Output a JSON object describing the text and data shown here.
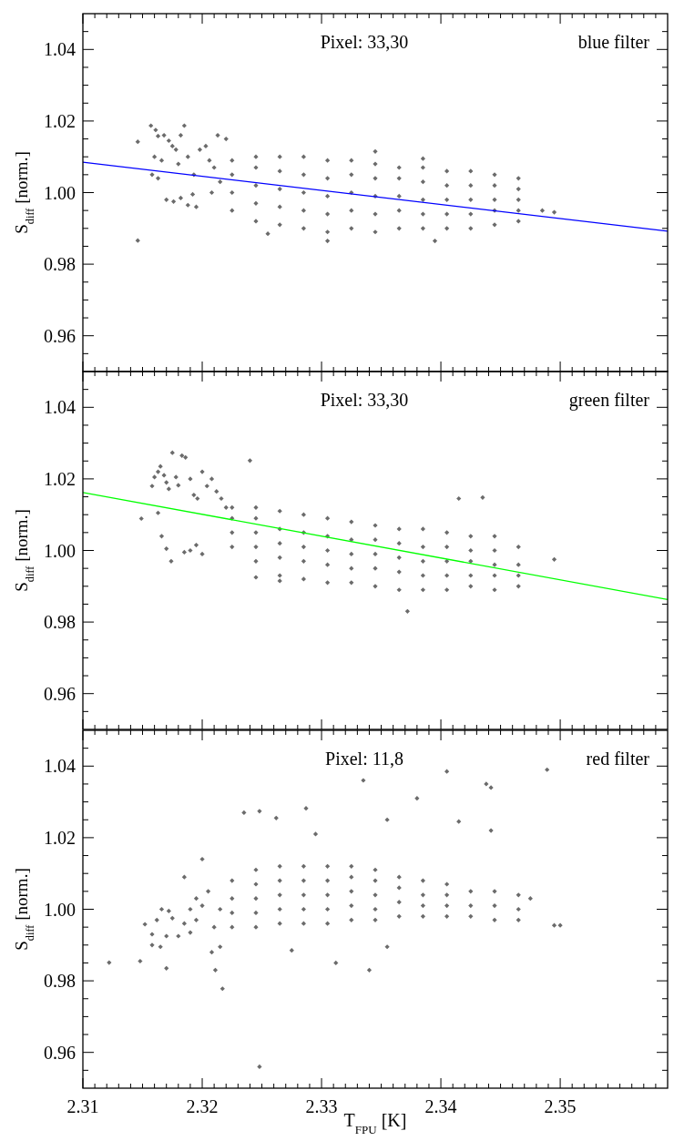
{
  "chart_data": [
    {
      "type": "scatter",
      "ylabel": "S$_{diff}$ [norm.]",
      "annotations": [
        "Pixel: 33,30",
        "blue filter"
      ],
      "xlim": [
        2.31,
        2.359
      ],
      "ylim": [
        0.95,
        1.05
      ],
      "tick_labels": "y",
      "xticks": [
        2.31,
        {
          "value": 2.311,
          "label": null
        },
        {
          "value": 2.312,
          "label": null
        },
        {
          "value": 2.313,
          "label": null
        },
        {
          "value": 2.314,
          "label": null
        },
        {
          "value": 2.315,
          "label": null
        },
        {
          "value": 2.316,
          "label": null
        },
        {
          "value": 2.317,
          "label": null
        },
        {
          "value": 2.318,
          "label": null
        },
        {
          "value": 2.319,
          "label": null
        },
        2.32,
        {
          "value": 2.321,
          "label": null
        },
        {
          "value": 2.322,
          "label": null
        },
        {
          "value": 2.323,
          "label": null
        },
        {
          "value": 2.324,
          "label": null
        },
        {
          "value": 2.325,
          "label": null
        },
        {
          "value": 2.326,
          "label": null
        },
        {
          "value": 2.327,
          "label": null
        },
        {
          "value": 2.328,
          "label": null
        },
        {
          "value": 2.329,
          "label": null
        },
        2.33,
        {
          "value": 2.331,
          "label": null
        },
        {
          "value": 2.332,
          "label": null
        },
        {
          "value": 2.333,
          "label": null
        },
        {
          "value": 2.334,
          "label": null
        },
        {
          "value": 2.335,
          "label": null
        },
        {
          "value": 2.336,
          "label": null
        },
        {
          "value": 2.337,
          "label": null
        },
        {
          "value": 2.338,
          "label": null
        },
        {
          "value": 2.339,
          "label": null
        },
        2.34,
        {
          "value": 2.341,
          "label": null
        },
        {
          "value": 2.342,
          "label": null
        },
        {
          "value": 2.343,
          "label": null
        },
        {
          "value": 2.344,
          "label": null
        },
        {
          "value": 2.345,
          "label": null
        },
        {
          "value": 2.346,
          "label": null
        },
        {
          "value": 2.347,
          "label": null
        },
        {
          "value": 2.348,
          "label": null
        },
        {
          "value": 2.349,
          "label": null
        },
        2.35,
        {
          "value": 2.351,
          "label": null
        },
        {
          "value": 2.352,
          "label": null
        },
        {
          "value": 2.353,
          "label": null
        },
        {
          "value": 2.354,
          "label": null
        },
        {
          "value": 2.355,
          "label": null
        },
        {
          "value": 2.356,
          "label": null
        },
        {
          "value": 2.357,
          "label": null
        },
        {
          "value": 2.358,
          "label": null
        }
      ],
      "yticks": [
        {
          "value": 0.955,
          "label": null
        },
        0.96,
        {
          "value": 0.965,
          "label": null
        },
        {
          "value": 0.97,
          "label": null
        },
        {
          "value": 0.975,
          "label": null
        },
        0.98,
        {
          "value": 0.985,
          "label": null
        },
        {
          "value": 0.99,
          "label": null
        },
        {
          "value": 0.995,
          "label": null
        },
        {
          "value": 1,
          "label": "1.00"
        },
        {
          "value": 1.005,
          "label": null
        },
        {
          "value": 1.01,
          "label": null
        },
        {
          "value": 1.015,
          "label": null
        },
        1.02,
        {
          "value": 1.025,
          "label": null
        },
        {
          "value": 1.03,
          "label": null
        },
        {
          "value": 1.035,
          "label": null
        },
        1.04,
        {
          "value": 1.045,
          "label": null
        }
      ],
      "series": [
        {
          "marker": "diamond",
          "color": "#6b6b6b",
          "x": [
            2.3146,
            2.3146,
            2.3157,
            2.3161,
            2.3163,
            2.3168,
            2.3172,
            2.316,
            2.3166,
            2.3175,
            2.3178,
            2.3182,
            2.3185,
            2.318,
            2.3188,
            2.317,
            2.3176,
            2.3182,
            2.3188,
            2.3192,
            2.3195,
            2.3193,
            2.3198,
            2.3203,
            2.3206,
            2.321,
            2.3213,
            2.322,
            2.3208,
            2.3215,
            2.3158,
            2.3163,
            2.3225,
            2.3225,
            2.3225,
            2.3225,
            2.3245,
            2.3245,
            2.3245,
            2.3245,
            2.3245,
            2.3265,
            2.3265,
            2.3265,
            2.3265,
            2.3265,
            2.3285,
            2.3285,
            2.3285,
            2.3285,
            2.3285,
            2.3305,
            2.3305,
            2.3305,
            2.3305,
            2.3305,
            2.3325,
            2.3325,
            2.3325,
            2.3325,
            2.3325,
            2.3345,
            2.3345,
            2.3345,
            2.3345,
            2.3345,
            2.3365,
            2.3365,
            2.3365,
            2.3365,
            2.3365,
            2.3385,
            2.3385,
            2.3385,
            2.3385,
            2.3385,
            2.3405,
            2.3405,
            2.3405,
            2.3405,
            2.3405,
            2.3425,
            2.3425,
            2.3425,
            2.3425,
            2.3425,
            2.3445,
            2.3445,
            2.3445,
            2.3445,
            2.3445,
            2.3465,
            2.3465,
            2.3465,
            2.3465,
            2.3465,
            2.3485,
            2.3495,
            2.3345,
            2.3395,
            2.3305,
            2.3255,
            2.3385
          ],
          "values": [
            1.0142,
            0.9866,
            1.0187,
            1.0175,
            1.0158,
            1.016,
            1.0145,
            1.01,
            1.009,
            1.013,
            1.012,
            1.016,
            1.0187,
            1.008,
            1.01,
            0.998,
            0.9975,
            0.9985,
            0.9965,
            0.9995,
            0.996,
            1.005,
            1.012,
            1.013,
            1.009,
            1.007,
            1.016,
            1.015,
            1,
            1.003,
            1.005,
            1.004,
            0.995,
            1,
            1.005,
            1.009,
            0.992,
            0.997,
            1.002,
            1.007,
            1.01,
            0.991,
            0.996,
            1.001,
            1.006,
            1.01,
            0.99,
            0.995,
            1,
            1.005,
            1.01,
            0.989,
            0.994,
            0.999,
            1.004,
            1.009,
            0.99,
            0.995,
            1,
            1.005,
            1.009,
            0.989,
            0.994,
            0.999,
            1.004,
            1.008,
            0.99,
            0.995,
            0.999,
            1.004,
            1.007,
            0.99,
            0.994,
            0.998,
            1.003,
            1.007,
            0.99,
            0.994,
            0.998,
            1.002,
            1.006,
            0.99,
            0.994,
            0.998,
            1.002,
            1.006,
            0.991,
            0.995,
            0.998,
            1.002,
            1.005,
            0.992,
            0.995,
            0.998,
            1.001,
            1.004,
            0.995,
            0.9945,
            1.0115,
            0.9865,
            0.9865,
            0.9885,
            1.0095
          ]
        },
        {
          "type": "line",
          "color": "#0000ff",
          "x": [
            2.31,
            2.359
          ],
          "values": [
            1.0085,
            0.9892
          ]
        }
      ]
    },
    {
      "type": "scatter",
      "ylabel": "S$_{diff}$ [norm.]",
      "annotations": [
        "Pixel: 33,30",
        "green filter"
      ],
      "xlim": [
        2.31,
        2.359
      ],
      "ylim": [
        0.95,
        1.05
      ],
      "tick_labels": "y",
      "xticks": [
        2.31,
        {
          "value": 2.311,
          "label": null
        },
        {
          "value": 2.312,
          "label": null
        },
        {
          "value": 2.313,
          "label": null
        },
        {
          "value": 2.314,
          "label": null
        },
        {
          "value": 2.315,
          "label": null
        },
        {
          "value": 2.316,
          "label": null
        },
        {
          "value": 2.317,
          "label": null
        },
        {
          "value": 2.318,
          "label": null
        },
        {
          "value": 2.319,
          "label": null
        },
        2.32,
        {
          "value": 2.321,
          "label": null
        },
        {
          "value": 2.322,
          "label": null
        },
        {
          "value": 2.323,
          "label": null
        },
        {
          "value": 2.324,
          "label": null
        },
        {
          "value": 2.325,
          "label": null
        },
        {
          "value": 2.326,
          "label": null
        },
        {
          "value": 2.327,
          "label": null
        },
        {
          "value": 2.328,
          "label": null
        },
        {
          "value": 2.329,
          "label": null
        },
        2.33,
        {
          "value": 2.331,
          "label": null
        },
        {
          "value": 2.332,
          "label": null
        },
        {
          "value": 2.333,
          "label": null
        },
        {
          "value": 2.334,
          "label": null
        },
        {
          "value": 2.335,
          "label": null
        },
        {
          "value": 2.336,
          "label": null
        },
        {
          "value": 2.337,
          "label": null
        },
        {
          "value": 2.338,
          "label": null
        },
        {
          "value": 2.339,
          "label": null
        },
        2.34,
        {
          "value": 2.341,
          "label": null
        },
        {
          "value": 2.342,
          "label": null
        },
        {
          "value": 2.343,
          "label": null
        },
        {
          "value": 2.344,
          "label": null
        },
        {
          "value": 2.345,
          "label": null
        },
        {
          "value": 2.346,
          "label": null
        },
        {
          "value": 2.347,
          "label": null
        },
        {
          "value": 2.348,
          "label": null
        },
        {
          "value": 2.349,
          "label": null
        },
        2.35,
        {
          "value": 2.351,
          "label": null
        },
        {
          "value": 2.352,
          "label": null
        },
        {
          "value": 2.353,
          "label": null
        },
        {
          "value": 2.354,
          "label": null
        },
        {
          "value": 2.355,
          "label": null
        },
        {
          "value": 2.356,
          "label": null
        },
        {
          "value": 2.357,
          "label": null
        },
        {
          "value": 2.358,
          "label": null
        }
      ],
      "yticks": [
        {
          "value": 0.955,
          "label": null
        },
        0.96,
        {
          "value": 0.965,
          "label": null
        },
        {
          "value": 0.97,
          "label": null
        },
        {
          "value": 0.975,
          "label": null
        },
        0.98,
        {
          "value": 0.985,
          "label": null
        },
        {
          "value": 0.99,
          "label": null
        },
        {
          "value": 0.995,
          "label": null
        },
        {
          "value": 1,
          "label": "1.00"
        },
        {
          "value": 1.005,
          "label": null
        },
        {
          "value": 1.01,
          "label": null
        },
        {
          "value": 1.015,
          "label": null
        },
        1.02,
        {
          "value": 1.025,
          "label": null
        },
        {
          "value": 1.03,
          "label": null
        },
        {
          "value": 1.035,
          "label": null
        },
        1.04,
        {
          "value": 1.045,
          "label": null
        }
      ],
      "series": [
        {
          "marker": "diamond",
          "color": "#6b6b6b",
          "x": [
            2.3149,
            2.3158,
            2.316,
            2.3163,
            2.3165,
            2.3168,
            2.317,
            2.3172,
            2.3175,
            2.3178,
            2.318,
            2.3183,
            2.3186,
            2.319,
            2.3193,
            2.3196,
            2.32,
            2.3204,
            2.3208,
            2.3212,
            2.3216,
            2.322,
            2.3163,
            2.3166,
            2.317,
            2.3174,
            2.3185,
            2.319,
            2.3195,
            2.32,
            2.324,
            2.3225,
            2.3225,
            2.3225,
            2.3225,
            2.3245,
            2.3245,
            2.3245,
            2.3245,
            2.3245,
            2.3265,
            2.3265,
            2.3265,
            2.3265,
            2.3265,
            2.3285,
            2.3285,
            2.3285,
            2.3285,
            2.3285,
            2.3305,
            2.3305,
            2.3305,
            2.3305,
            2.3305,
            2.3325,
            2.3325,
            2.3325,
            2.3325,
            2.3325,
            2.3345,
            2.3345,
            2.3345,
            2.3345,
            2.3345,
            2.3365,
            2.3365,
            2.3365,
            2.3365,
            2.3365,
            2.3385,
            2.3385,
            2.3385,
            2.3385,
            2.3385,
            2.3405,
            2.3405,
            2.3405,
            2.3405,
            2.3405,
            2.3425,
            2.3425,
            2.3425,
            2.3425,
            2.3425,
            2.3445,
            2.3445,
            2.3445,
            2.3445,
            2.3445,
            2.3465,
            2.3465,
            2.3465,
            2.3465,
            2.3415,
            2.3435,
            2.3372,
            2.3495,
            2.3265,
            2.3245
          ],
          "values": [
            1.0089,
            1.018,
            1.0205,
            1.022,
            1.0235,
            1.021,
            1.019,
            1.0172,
            1.0273,
            1.0205,
            1.0182,
            1.0265,
            1.026,
            1.02,
            1.0155,
            1.0145,
            1.022,
            1.018,
            1.02,
            1.0165,
            1.0145,
            1.012,
            1.0105,
            1.004,
            1.0005,
            0.997,
            0.9995,
            1.0,
            1.0015,
            0.999,
            1.0251,
            1.001,
            1.005,
            1.009,
            1.012,
            0.997,
            1.001,
            1.005,
            1.009,
            1.012,
            0.993,
            0.998,
            1.002,
            1.006,
            1.011,
            0.992,
            0.997,
            1.001,
            1.005,
            1.01,
            0.991,
            0.996,
            1.0,
            1.004,
            1.009,
            0.991,
            0.995,
            0.999,
            1.003,
            1.008,
            0.99,
            0.995,
            0.999,
            1.003,
            1.007,
            0.989,
            0.994,
            0.998,
            1.002,
            1.006,
            0.989,
            0.993,
            0.997,
            1.001,
            1.006,
            0.989,
            0.993,
            0.997,
            1.001,
            1.005,
            0.99,
            0.993,
            0.997,
            1.0,
            1.004,
            0.989,
            0.993,
            0.996,
            1.0,
            1.004,
            0.99,
            0.993,
            0.996,
            1.001,
            1.0145,
            1.0148,
            0.983,
            0.9975,
            0.9915,
            0.9925
          ]
        },
        {
          "type": "line",
          "color": "#00ff00",
          "x": [
            2.31,
            2.359
          ],
          "values": [
            1.0162,
            0.9863
          ]
        }
      ]
    },
    {
      "type": "scatter",
      "xlabel": "T$_{FPU}$ [K]",
      "ylabel": "S$_{diff}$ [norm.]",
      "annotations": [
        "Pixel: 11,8",
        "red filter"
      ],
      "xlim": [
        2.31,
        2.359
      ],
      "ylim": [
        0.95,
        1.05
      ],
      "xticks": [
        2.31,
        {
          "value": 2.311,
          "label": null
        },
        {
          "value": 2.312,
          "label": null
        },
        {
          "value": 2.313,
          "label": null
        },
        {
          "value": 2.314,
          "label": null
        },
        {
          "value": 2.315,
          "label": null
        },
        {
          "value": 2.316,
          "label": null
        },
        {
          "value": 2.317,
          "label": null
        },
        {
          "value": 2.318,
          "label": null
        },
        {
          "value": 2.319,
          "label": null
        },
        2.32,
        {
          "value": 2.321,
          "label": null
        },
        {
          "value": 2.322,
          "label": null
        },
        {
          "value": 2.323,
          "label": null
        },
        {
          "value": 2.324,
          "label": null
        },
        {
          "value": 2.325,
          "label": null
        },
        {
          "value": 2.326,
          "label": null
        },
        {
          "value": 2.327,
          "label": null
        },
        {
          "value": 2.328,
          "label": null
        },
        {
          "value": 2.329,
          "label": null
        },
        2.33,
        {
          "value": 2.331,
          "label": null
        },
        {
          "value": 2.332,
          "label": null
        },
        {
          "value": 2.333,
          "label": null
        },
        {
          "value": 2.334,
          "label": null
        },
        {
          "value": 2.335,
          "label": null
        },
        {
          "value": 2.336,
          "label": null
        },
        {
          "value": 2.337,
          "label": null
        },
        {
          "value": 2.338,
          "label": null
        },
        {
          "value": 2.339,
          "label": null
        },
        2.34,
        {
          "value": 2.341,
          "label": null
        },
        {
          "value": 2.342,
          "label": null
        },
        {
          "value": 2.343,
          "label": null
        },
        {
          "value": 2.344,
          "label": null
        },
        {
          "value": 2.345,
          "label": null
        },
        {
          "value": 2.346,
          "label": null
        },
        {
          "value": 2.347,
          "label": null
        },
        {
          "value": 2.348,
          "label": null
        },
        {
          "value": 2.349,
          "label": null
        },
        2.35,
        {
          "value": 2.351,
          "label": null
        },
        {
          "value": 2.352,
          "label": null
        },
        {
          "value": 2.353,
          "label": null
        },
        {
          "value": 2.354,
          "label": null
        },
        {
          "value": 2.355,
          "label": null
        },
        {
          "value": 2.356,
          "label": null
        },
        {
          "value": 2.357,
          "label": null
        },
        {
          "value": 2.358,
          "label": null
        }
      ],
      "yticks": [
        {
          "value": 0.955,
          "label": null
        },
        0.96,
        {
          "value": 0.965,
          "label": null
        },
        {
          "value": 0.97,
          "label": null
        },
        {
          "value": 0.975,
          "label": null
        },
        0.98,
        {
          "value": 0.985,
          "label": null
        },
        {
          "value": 0.99,
          "label": null
        },
        {
          "value": 0.995,
          "label": null
        },
        {
          "value": 1,
          "label": "1.00"
        },
        {
          "value": 1.005,
          "label": null
        },
        {
          "value": 1.01,
          "label": null
        },
        {
          "value": 1.015,
          "label": null
        },
        1.02,
        {
          "value": 1.025,
          "label": null
        },
        {
          "value": 1.03,
          "label": null
        },
        {
          "value": 1.035,
          "label": null
        },
        1.04,
        {
          "value": 1.045,
          "label": null
        }
      ],
      "series": [
        {
          "marker": "diamond",
          "color": "#6b6b6b",
          "x": [
            2.3122,
            2.3148,
            2.317,
            2.3217,
            2.3248,
            2.3248,
            2.3287,
            2.3335,
            2.3405,
            2.3438,
            2.3442,
            2.3489,
            2.338,
            2.3415,
            2.3262,
            2.334,
            2.3312,
            2.3211,
            2.3495,
            2.35,
            2.3442,
            2.3152,
            2.3158,
            2.3162,
            2.3166,
            2.317,
            2.3175,
            2.3158,
            2.3165,
            2.3172,
            2.318,
            2.3185,
            2.319,
            2.3195,
            2.3185,
            2.319,
            2.3195,
            2.32,
            2.3205,
            2.321,
            2.3215,
            2.32,
            2.3208,
            2.3215,
            2.3225,
            2.3225,
            2.3225,
            2.3225,
            2.3245,
            2.3245,
            2.3245,
            2.3245,
            2.3245,
            2.3265,
            2.3265,
            2.3265,
            2.3265,
            2.3265,
            2.3285,
            2.3285,
            2.3285,
            2.3285,
            2.3285,
            2.3305,
            2.3305,
            2.3305,
            2.3305,
            2.3305,
            2.3325,
            2.3325,
            2.3325,
            2.3325,
            2.3325,
            2.3345,
            2.3345,
            2.3345,
            2.3345,
            2.3345,
            2.3365,
            2.3365,
            2.3365,
            2.3365,
            2.3385,
            2.3385,
            2.3385,
            2.3385,
            2.3405,
            2.3405,
            2.3405,
            2.3405,
            2.3425,
            2.3425,
            2.3425,
            2.3445,
            2.3445,
            2.3445,
            2.3465,
            2.3465,
            2.3465,
            2.3475,
            2.3235,
            2.3295,
            2.3355,
            2.3275,
            2.3355
          ],
          "values": [
            0.9851,
            0.9855,
            0.9835,
            0.9778,
            0.956,
            1.0274,
            1.0282,
            1.036,
            1.0385,
            1.035,
            1.034,
            1.039,
            1.031,
            1.0245,
            1.0255,
            0.983,
            0.985,
            0.983,
            0.9955,
            0.9955,
            1.022,
            0.9958,
            0.993,
            0.997,
            1.0,
            0.9925,
            0.9975,
            0.99,
            0.9895,
            0.9995,
            0.9925,
            0.996,
            1.0,
            1.003,
            1.009,
            0.9935,
            0.997,
            1.001,
            1.005,
            0.995,
            1.0,
            1.014,
            0.988,
            0.9895,
            0.995,
            0.999,
            1.003,
            1.008,
            0.995,
            0.999,
            1.003,
            1.007,
            1.011,
            0.996,
            1.0,
            1.004,
            1.008,
            1.012,
            0.996,
            1.0,
            1.004,
            1.008,
            1.012,
            0.996,
            1.0,
            1.004,
            1.008,
            1.012,
            0.997,
            1.001,
            1.005,
            1.009,
            1.012,
            0.997,
            1.0,
            1.004,
            1.008,
            1.011,
            0.998,
            1.002,
            1.006,
            1.009,
            0.998,
            1.001,
            1.004,
            1.008,
            0.998,
            1.001,
            1.004,
            1.007,
            0.998,
            1.001,
            1.005,
            0.997,
            1.001,
            1.005,
            0.997,
            1.0,
            1.004,
            1.003,
            1.027,
            1.021,
            1.025,
            0.9885,
            0.9895
          ]
        }
      ]
    }
  ]
}
